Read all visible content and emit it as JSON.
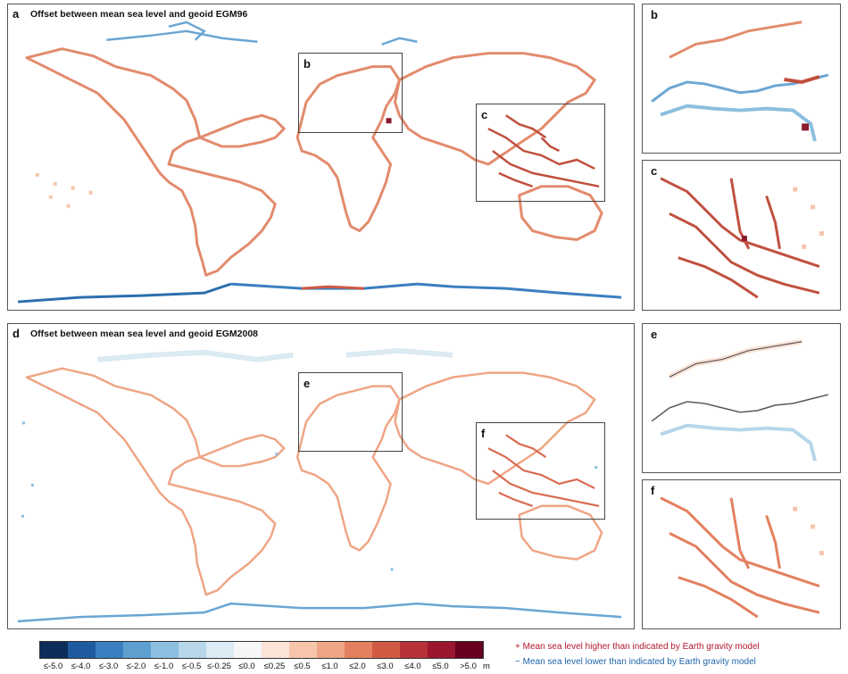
{
  "panels": {
    "a": {
      "letter": "a",
      "title": "Offset between mean sea level and geoid EGM96"
    },
    "d": {
      "letter": "d",
      "title": "Offset between mean sea level and geoid EGM2008"
    },
    "b": {
      "letter": "b"
    },
    "c": {
      "letter": "c"
    },
    "e": {
      "letter": "e"
    },
    "f": {
      "letter": "f"
    }
  },
  "colorbar": {
    "unit": "m",
    "ticks": [
      "≤-5.0",
      "≤-4.0",
      "≤-3.0",
      "≤-2.0",
      "≤-1.0",
      "≤-0.5",
      "≤-0.25",
      "≤0.0",
      "≤0.25",
      "≤0.5",
      "≤1.0",
      "≤2.0",
      "≤3.0",
      "≤4.0",
      "≤5.0",
      ">5.0"
    ],
    "colors": [
      "#0d2c5a",
      "#1f5aa0",
      "#3a7fc1",
      "#5da0d0",
      "#8cbfdf",
      "#b6d6ea",
      "#dbeaf3",
      "#f4f6f8",
      "#fbe3d7",
      "#f6c5ab",
      "#efa585",
      "#e4805f",
      "#d05a44",
      "#b8323a",
      "#9b1730",
      "#67001f"
    ]
  },
  "legend": {
    "positive": "+ Mean sea level higher than indicated by Earth gravity model",
    "negative": "− Mean sea level lower than indicated by Earth gravity model"
  },
  "style": {
    "coast_pos": "#e28b6d",
    "coast_pos_dark": "#c0503e",
    "coast_neg": "#6aa6d4",
    "coast_neg_dark": "#2c6fae",
    "land_light": "#f4dcd2",
    "extreme_pos": "#8b1a2b"
  }
}
